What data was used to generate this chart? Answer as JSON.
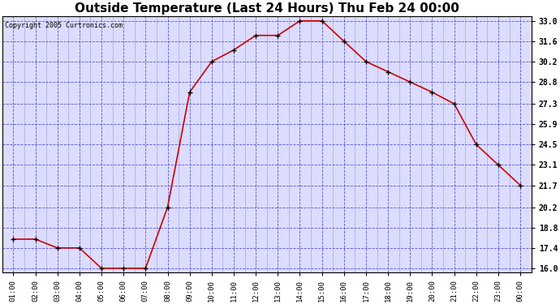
{
  "title": "Outside Temperature (Last 24 Hours) Thu Feb 24 00:00",
  "copyright_text": "Copyright 2005 Curtronics.com",
  "hours": [
    "01:00",
    "02:00",
    "03:00",
    "04:00",
    "05:00",
    "06:00",
    "07:00",
    "08:00",
    "09:00",
    "10:00",
    "11:00",
    "12:00",
    "13:00",
    "14:00",
    "15:00",
    "16:00",
    "17:00",
    "18:00",
    "19:00",
    "20:00",
    "21:00",
    "22:00",
    "23:00",
    "00:00"
  ],
  "temps": [
    18.0,
    18.0,
    17.4,
    17.4,
    16.0,
    16.0,
    16.0,
    20.2,
    28.1,
    30.2,
    31.0,
    32.0,
    32.0,
    33.0,
    33.0,
    31.6,
    30.2,
    29.5,
    28.8,
    28.1,
    27.3,
    24.5,
    23.1,
    21.7
  ],
  "line_color": "#cc0000",
  "marker_color": "#000000",
  "fig_bg_color": "#ffffff",
  "plot_bg_color": "#dcdcff",
  "grid_color": "#5555cc",
  "title_fontsize": 11,
  "yticks": [
    16.0,
    17.4,
    18.8,
    20.2,
    21.7,
    23.1,
    24.5,
    25.9,
    27.3,
    28.8,
    30.2,
    31.6,
    33.0
  ],
  "ymin": 15.7,
  "ymax": 33.3
}
